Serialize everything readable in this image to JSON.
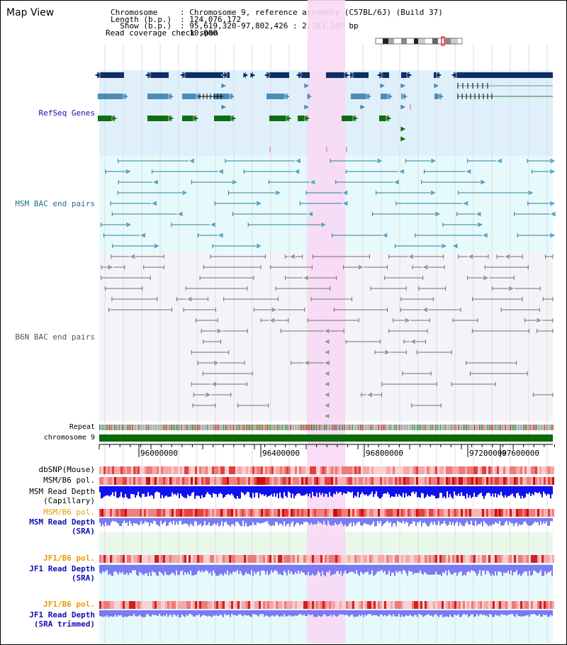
{
  "title": "Map View",
  "header": {
    "chromosome_label": "Chromosome     ",
    "chromosome_value": ": Chromosome 9, reference assembly (C57BL/6J) (Build 37)",
    "length_label": "Length (b.p.) ",
    "length_value": ": 124,076,172",
    "show_label": "  Show (b.p.) ",
    "show_value": ": 95,619,320-97,802,426 : 2,183,107 bp",
    "coverage_label": "Read coverage check span",
    "coverage_value": ": 10,000"
  },
  "tracks": {
    "refseq": "RefSeq Genes",
    "msm_bac": "MSM BAC end pairs",
    "b6n_bac": "B6N BAC end pairs",
    "repeat": "Repeat",
    "chromosome": "chromosome 9",
    "dbsnp": "dbSNP(Mouse)",
    "msm_b6_pol": "MSM/B6 pol.",
    "msm_depth_cap": "MSM Read Depth",
    "msm_depth_cap_sub": "(Capillary)",
    "msm_b6_pol_sra": "MSM/B6 pol.",
    "msm_depth_sra": "MSM Read Depth",
    "msm_depth_sra_sub": "(SRA)",
    "jf1_pol": "JF1/B6 pol.",
    "jf1_depth": "JF1 Read Depth",
    "jf1_depth_sub": "(SRA)",
    "jf1_pol_trim": "JF1/B6 pol.",
    "jf1_depth_trim": "JF1 Read Depth",
    "jf1_depth_trim_sub": "(SRA trimmed)"
  },
  "ruler": {
    "ticks": [
      "96000000",
      "96400000",
      "96800000",
      "97200000",
      "97600000"
    ]
  },
  "colors": {
    "refseq_bg": "#dff0fa",
    "bac_bg": "#e6fafc",
    "highlight": "#f8d8f4",
    "navy": "#0e2e66",
    "steel": "#4a8db8",
    "green": "#106e10",
    "bac_line": "#2a7e95",
    "gray_line": "#707070",
    "chrom_green": "#0b6a0b",
    "depth_blue": "#1010f0",
    "depth_light": "#7a7af2",
    "label_blue": "#1010b0",
    "label_orange": "#e89a00"
  }
}
